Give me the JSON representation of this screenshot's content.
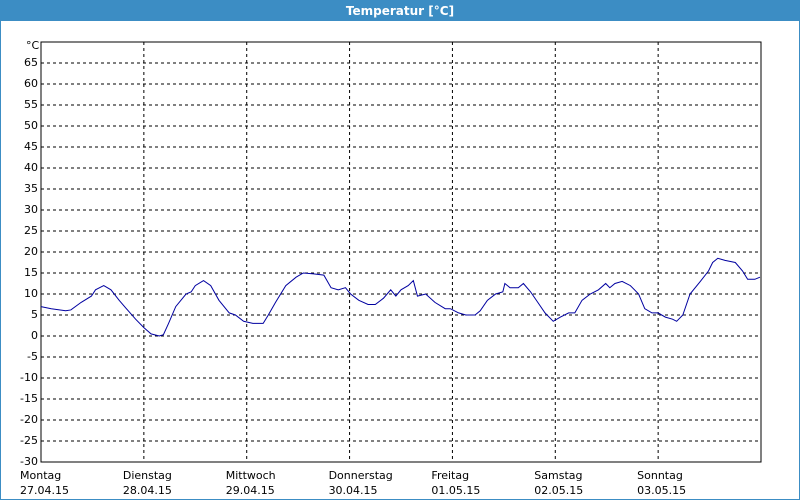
{
  "window_title": "Temperatur [°C]",
  "chart_data": {
    "type": "line",
    "ylabel": "°C",
    "xlim": [
      0,
      7
    ],
    "ylim": [
      -30,
      70
    ],
    "xticks": [
      {
        "value": 0,
        "label": "Montag",
        "date": "27.04.15"
      },
      {
        "value": 1,
        "label": "Dienstag",
        "date": "28.04.15"
      },
      {
        "value": 2,
        "label": "Mittwoch",
        "date": "29.04.15"
      },
      {
        "value": 3,
        "label": "Donnerstag",
        "date": "30.04.15"
      },
      {
        "value": 4,
        "label": "Freitag",
        "date": "01.05.15"
      },
      {
        "value": 5,
        "label": "Samstag",
        "date": "02.05.15"
      },
      {
        "value": 6,
        "label": "Sonntag",
        "date": "03.05.15"
      }
    ],
    "yticks": [
      -30,
      -25,
      -20,
      -15,
      -10,
      -5,
      0,
      5,
      10,
      15,
      20,
      25,
      30,
      35,
      40,
      45,
      50,
      55,
      60,
      65
    ],
    "grid": true,
    "series": [
      {
        "color": "#0000a0",
        "x": [
          0,
          0.1,
          0.24,
          0.29,
          0.39,
          0.49,
          0.53,
          0.61,
          0.68,
          0.76,
          0.83,
          0.92,
          1.0,
          1.07,
          1.15,
          1.19,
          1.24,
          1.31,
          1.41,
          1.46,
          1.5,
          1.58,
          1.65,
          1.73,
          1.83,
          1.89,
          1.97,
          2.06,
          2.16,
          2.21,
          2.28,
          2.38,
          2.48,
          2.55,
          2.65,
          2.75,
          2.82,
          2.89,
          2.96,
          3.01,
          3.09,
          3.18,
          3.25,
          3.33,
          3.4,
          3.45,
          3.5,
          3.57,
          3.62,
          3.66,
          3.74,
          3.83,
          3.93,
          3.98,
          4.06,
          4.13,
          4.22,
          4.27,
          4.34,
          4.42,
          4.49,
          4.51,
          4.56,
          4.64,
          4.69,
          4.76,
          4.83,
          4.9,
          4.98,
          5.05,
          5.13,
          5.19,
          5.26,
          5.34,
          5.42,
          5.49,
          5.53,
          5.58,
          5.65,
          5.73,
          5.81,
          5.87,
          5.94,
          6.0,
          6.07,
          6.14,
          6.18,
          6.24,
          6.31,
          6.41,
          6.49,
          6.53,
          6.58,
          6.65,
          6.75,
          6.82,
          6.87,
          6.94,
          6.99
        ],
        "values": [
          7,
          6.5,
          6,
          6.2,
          8,
          9.5,
          11,
          12,
          11,
          8.5,
          6.5,
          4,
          2,
          0.5,
          0,
          0.3,
          3,
          7,
          10,
          10.5,
          12,
          13.2,
          12,
          8.5,
          5.5,
          5,
          3.5,
          3,
          3,
          5,
          8,
          12,
          14,
          15,
          14.8,
          14.5,
          11.5,
          11,
          11.5,
          10,
          8.5,
          7.5,
          7.5,
          9,
          11,
          9.5,
          11,
          12,
          13.2,
          9.5,
          10,
          8,
          6.5,
          6.5,
          5.5,
          5,
          5,
          6,
          8.5,
          10,
          10.5,
          12.5,
          11.5,
          11.5,
          12.5,
          10.5,
          8,
          5.5,
          3.5,
          4.5,
          5.5,
          5.5,
          8.5,
          10,
          11,
          12.5,
          11.5,
          12.5,
          13,
          12,
          10,
          6.5,
          5.5,
          5.5,
          4.5,
          4,
          3.5,
          5,
          10,
          13,
          15.5,
          17.5,
          18.5,
          18,
          17.5,
          15.5,
          13.5,
          13.5,
          14
        ]
      }
    ]
  }
}
